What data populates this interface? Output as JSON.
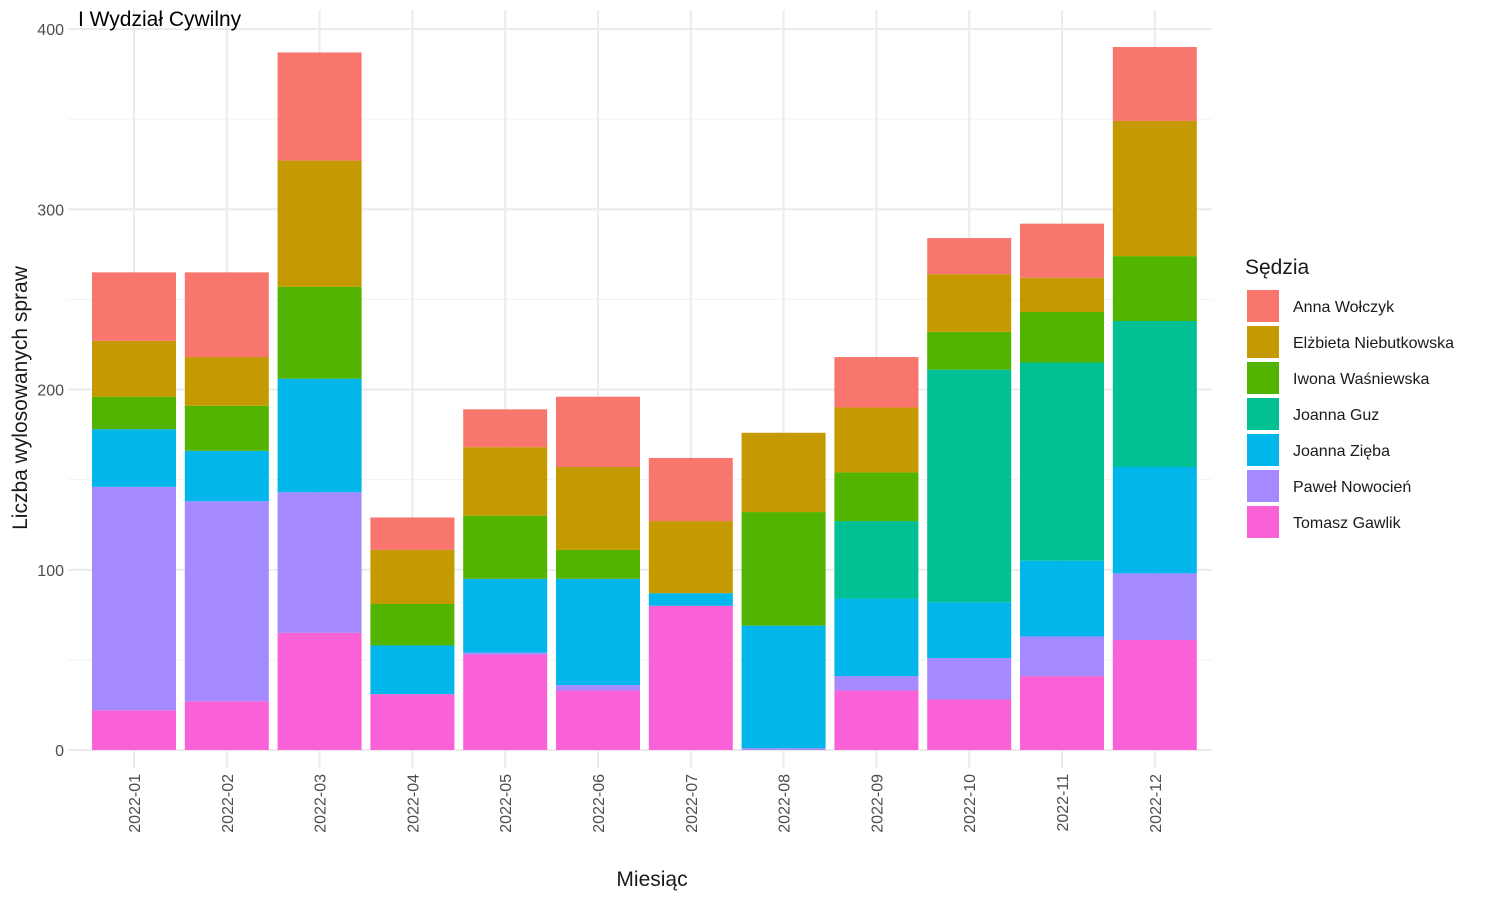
{
  "chart_data": {
    "type": "bar",
    "stacked": true,
    "title": "I Wydział Cywilny",
    "xlabel": "Miesiąc",
    "ylabel": "Liczba wylosowanych spraw",
    "ylim": [
      0,
      400
    ],
    "yticks": [
      0,
      100,
      200,
      300,
      400
    ],
    "grid": true,
    "legend_title": "Sędzia",
    "legend_position": "right",
    "categories": [
      "2022-01",
      "2022-02",
      "2022-03",
      "2022-04",
      "2022-05",
      "2022-06",
      "2022-07",
      "2022-08",
      "2022-09",
      "2022-10",
      "2022-11",
      "2022-12"
    ],
    "series": [
      {
        "name": "Tomasz Gawlik",
        "color": "#FB61D7",
        "values": [
          22,
          27,
          65,
          31,
          53,
          33,
          80,
          0,
          33,
          28,
          41,
          61
        ]
      },
      {
        "name": "Paweł Nowocień",
        "color": "#A58AFF",
        "values": [
          124,
          111,
          78,
          0,
          1,
          3,
          0,
          1,
          8,
          23,
          22,
          37
        ]
      },
      {
        "name": "Joanna Zięba",
        "color": "#00B6EB",
        "values": [
          32,
          28,
          63,
          27,
          41,
          59,
          7,
          68,
          43,
          31,
          42,
          59
        ]
      },
      {
        "name": "Joanna Guz",
        "color": "#00C094",
        "values": [
          0,
          0,
          0,
          0,
          0,
          0,
          0,
          0,
          43,
          129,
          110,
          81
        ]
      },
      {
        "name": "Iwona Waśniewska",
        "color": "#53B400",
        "values": [
          18,
          25,
          51,
          23,
          35,
          16,
          0,
          63,
          27,
          21,
          28,
          36
        ]
      },
      {
        "name": "Elżbieta Niebutkowska",
        "color": "#C49A00",
        "values": [
          31,
          27,
          70,
          30,
          38,
          46,
          40,
          44,
          36,
          32,
          19,
          75
        ]
      },
      {
        "name": "Anna Wołczyk",
        "color": "#F8766D",
        "values": [
          38,
          47,
          60,
          18,
          21,
          39,
          35,
          0,
          28,
          20,
          30,
          41
        ]
      }
    ],
    "legend_order": [
      "Anna Wołczyk",
      "Elżbieta Niebutkowska",
      "Iwona Waśniewska",
      "Joanna Guz",
      "Joanna Zięba",
      "Paweł Nowocień",
      "Tomasz Gawlik"
    ]
  }
}
